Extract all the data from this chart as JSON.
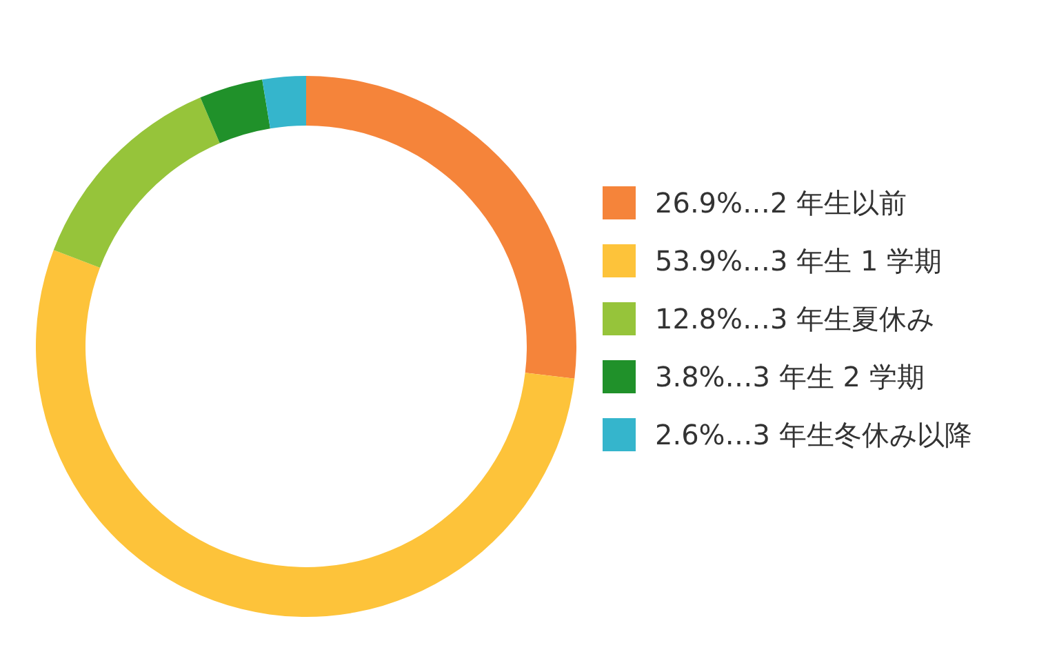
{
  "chart_data": {
    "type": "donut",
    "categories": [
      "26.9%…2 年生以前",
      "53.9%…3 年生 1 学期",
      "12.8%…3 年生夏休み",
      "3.8%…3 年生 2 学期",
      "2.6%…3 年生冬休み以降"
    ],
    "values": [
      26.9,
      53.9,
      12.8,
      3.8,
      2.6
    ],
    "colors": [
      "#f5843a",
      "#fdc33a",
      "#96c43a",
      "#20912a",
      "#35b5cc"
    ],
    "legend": "right"
  }
}
